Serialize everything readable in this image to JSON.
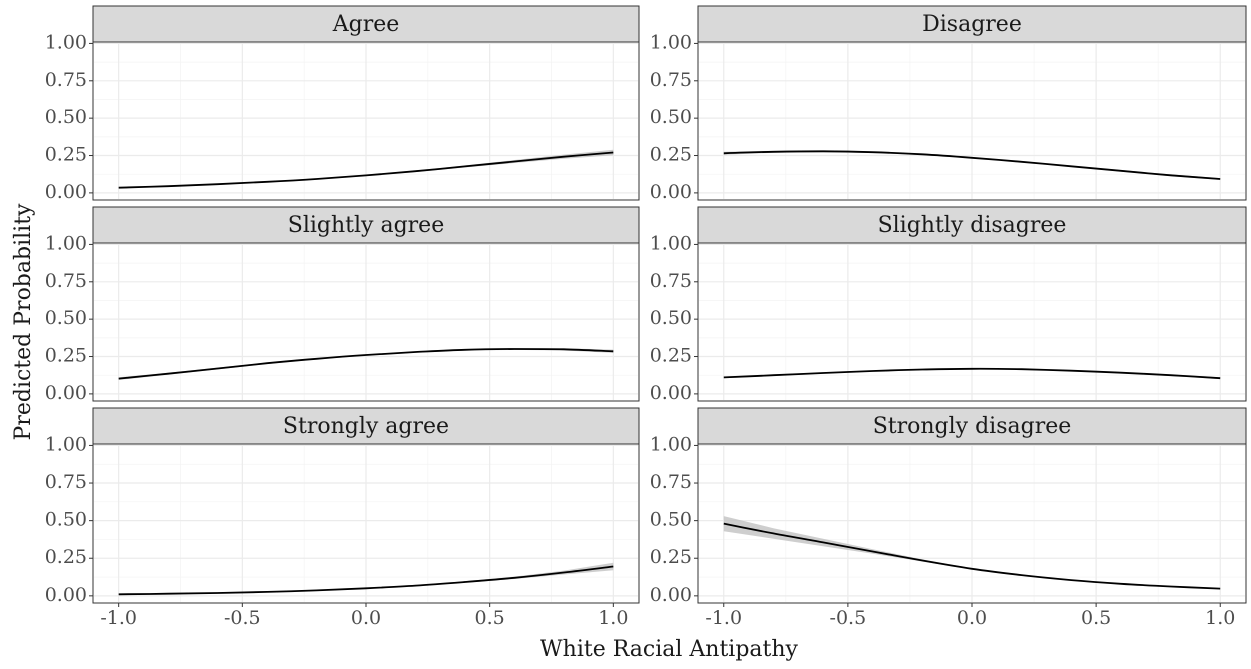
{
  "chart_data": {
    "type": "line",
    "layout": "facet grid, 3 rows x 2 columns, shared axes",
    "xlabel": "White Racial Antipathy",
    "ylabel": "Predicted Probability",
    "xlim": [
      -1.0,
      1.0
    ],
    "ylim": [
      0.0,
      1.0
    ],
    "x_ticks": [
      "-1.0",
      "-0.5",
      "0.0",
      "0.5",
      "1.0"
    ],
    "y_ticks": [
      "0.00",
      "0.25",
      "0.50",
      "0.75",
      "1.00"
    ],
    "grid": true,
    "colors": {
      "line": "#000000",
      "ribbon": "#bdbdbd",
      "strip": "#d9d9d9"
    },
    "x": [
      -1.0,
      -0.8,
      -0.6,
      -0.4,
      -0.2,
      0.0,
      0.2,
      0.4,
      0.6,
      0.8,
      1.0
    ],
    "panels": [
      {
        "title": "Agree",
        "row": 0,
        "col": 0,
        "values": [
          0.035,
          0.045,
          0.058,
          0.074,
          0.093,
          0.117,
          0.145,
          0.177,
          0.21,
          0.242,
          0.27
        ],
        "lower": [
          0.032,
          0.042,
          0.055,
          0.071,
          0.09,
          0.113,
          0.14,
          0.17,
          0.2,
          0.228,
          0.252
        ],
        "upper": [
          0.038,
          0.048,
          0.061,
          0.077,
          0.096,
          0.121,
          0.15,
          0.184,
          0.22,
          0.256,
          0.288
        ]
      },
      {
        "title": "Disagree",
        "row": 0,
        "col": 1,
        "values": [
          0.265,
          0.275,
          0.278,
          0.272,
          0.258,
          0.235,
          0.208,
          0.178,
          0.148,
          0.118,
          0.093
        ],
        "lower": [
          0.255,
          0.268,
          0.272,
          0.267,
          0.254,
          0.232,
          0.205,
          0.174,
          0.143,
          0.112,
          0.087
        ],
        "upper": [
          0.275,
          0.282,
          0.284,
          0.277,
          0.262,
          0.238,
          0.211,
          0.182,
          0.153,
          0.124,
          0.099
        ]
      },
      {
        "title": "Slightly agree",
        "row": 1,
        "col": 0,
        "values": [
          0.102,
          0.135,
          0.17,
          0.205,
          0.235,
          0.26,
          0.28,
          0.295,
          0.3,
          0.298,
          0.285
        ],
        "lower": [
          0.093,
          0.128,
          0.164,
          0.2,
          0.231,
          0.256,
          0.276,
          0.29,
          0.294,
          0.29,
          0.274
        ],
        "upper": [
          0.111,
          0.142,
          0.176,
          0.21,
          0.239,
          0.264,
          0.284,
          0.3,
          0.306,
          0.306,
          0.296
        ]
      },
      {
        "title": "Slightly disagree",
        "row": 1,
        "col": 1,
        "values": [
          0.11,
          0.125,
          0.14,
          0.153,
          0.163,
          0.168,
          0.165,
          0.155,
          0.142,
          0.125,
          0.105
        ],
        "lower": [
          0.104,
          0.12,
          0.136,
          0.15,
          0.16,
          0.165,
          0.162,
          0.152,
          0.138,
          0.12,
          0.099
        ],
        "upper": [
          0.116,
          0.13,
          0.144,
          0.156,
          0.166,
          0.171,
          0.168,
          0.158,
          0.146,
          0.13,
          0.111
        ]
      },
      {
        "title": "Strongly agree",
        "row": 2,
        "col": 0,
        "values": [
          0.01,
          0.014,
          0.019,
          0.026,
          0.036,
          0.05,
          0.068,
          0.092,
          0.12,
          0.155,
          0.195
        ],
        "lower": [
          0.009,
          0.013,
          0.018,
          0.025,
          0.035,
          0.048,
          0.065,
          0.087,
          0.112,
          0.142,
          0.17
        ],
        "upper": [
          0.011,
          0.015,
          0.02,
          0.027,
          0.037,
          0.052,
          0.071,
          0.097,
          0.128,
          0.168,
          0.22
        ]
      },
      {
        "title": "Strongly disagree",
        "row": 2,
        "col": 1,
        "values": [
          0.48,
          0.415,
          0.355,
          0.295,
          0.235,
          0.18,
          0.138,
          0.105,
          0.08,
          0.062,
          0.048
        ],
        "lower": [
          0.43,
          0.38,
          0.33,
          0.28,
          0.228,
          0.176,
          0.135,
          0.102,
          0.077,
          0.059,
          0.045
        ],
        "upper": [
          0.53,
          0.45,
          0.38,
          0.31,
          0.242,
          0.184,
          0.141,
          0.108,
          0.083,
          0.065,
          0.051
        ]
      }
    ]
  }
}
